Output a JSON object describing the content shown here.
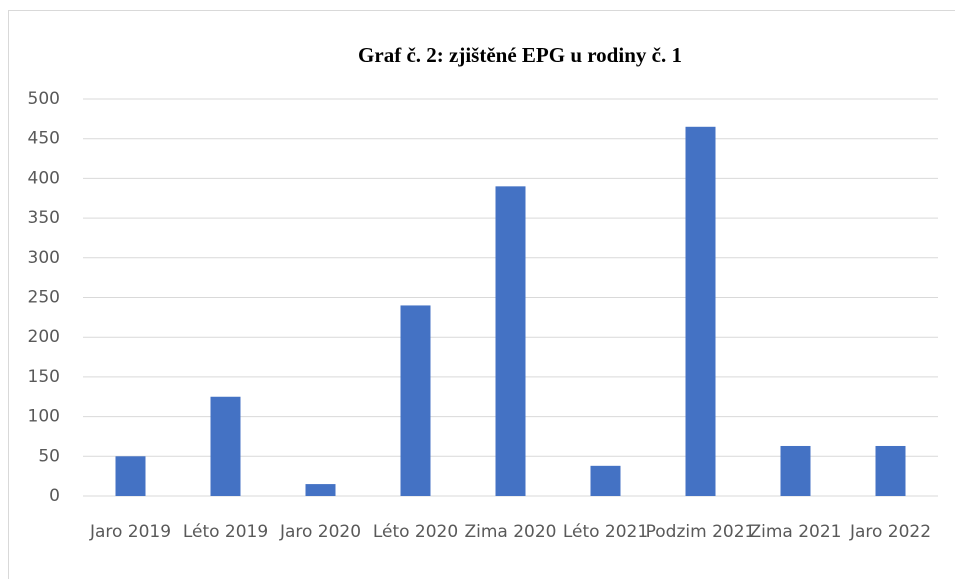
{
  "chart_data": {
    "type": "bar",
    "title": "Graf č. 2: zjištěné EPG u rodiny č. 1",
    "categories": [
      "Jaro 2019",
      "Léto 2019",
      "Jaro 2020",
      "Léto 2020",
      "Zima 2020",
      "Léto 2021",
      "Podzim 2021",
      "Zima 2021",
      "Jaro 2022"
    ],
    "values": [
      50,
      125,
      15,
      240,
      390,
      38,
      465,
      63,
      63
    ],
    "color": "#4472c4",
    "ylim": [
      0,
      500
    ],
    "yticks": [
      0,
      50,
      100,
      150,
      200,
      250,
      300,
      350,
      400,
      450,
      500
    ],
    "grid": true
  }
}
